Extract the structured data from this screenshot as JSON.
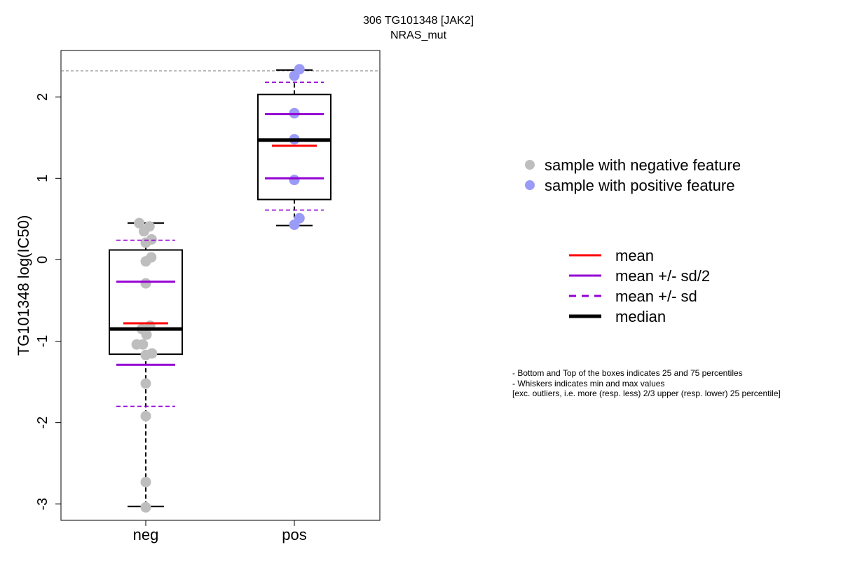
{
  "title": {
    "line1": "306 TG101348 [JAK2]",
    "line2": "NRAS_mut"
  },
  "legend_points": [
    {
      "label": "sample with negative feature",
      "color": "#bebebe"
    },
    {
      "label": "sample with positive feature",
      "color": "#9a9af7"
    }
  ],
  "legend_lines": [
    {
      "label": "mean",
      "color": "#ff0000",
      "style": "solid"
    },
    {
      "label": "mean +/- sd/2",
      "color": "#9400d3",
      "style": "solid"
    },
    {
      "label": "mean +/- sd",
      "color": "#9400d3",
      "style": "dashed"
    },
    {
      "label": "median",
      "color": "#000000",
      "style": "thick"
    }
  ],
  "notes": [
    "- Bottom and Top of the boxes indicates 25 and 75 percentiles",
    "- Whiskers indicates min and max values",
    "[exc. outliers, i.e. more (resp. less) 2/3 upper (resp. lower) 25 percentile]"
  ],
  "chart_data": {
    "type": "box",
    "title": "306 TG101348 [JAK2]\nNRAS_mut",
    "xlabel": "",
    "ylabel": "TG101348 log(IC50)",
    "categories": [
      "neg",
      "pos"
    ],
    "ylim": [
      -3.2,
      2.57
    ],
    "yticks": [
      -3,
      -2,
      -1,
      0,
      1,
      2
    ],
    "reference_line": 2.32,
    "groups": [
      {
        "name": "neg",
        "color": "#bebebe",
        "box": {
          "whisker_low": -3.03,
          "q1": -1.16,
          "median": -0.85,
          "q3": 0.12,
          "whisker_high": 0.45
        },
        "mean": -0.78,
        "mean_minus_half_sd": -1.29,
        "mean_plus_half_sd": -0.27,
        "mean_minus_sd": -1.8,
        "mean_plus_sd": 0.24,
        "points": [
          {
            "x": -0.18,
            "y": 0.45
          },
          {
            "x": -0.05,
            "y": 0.35
          },
          {
            "x": 0.1,
            "y": 0.41
          },
          {
            "x": 0.16,
            "y": 0.25
          },
          {
            "x": 0.0,
            "y": 0.21
          },
          {
            "x": 0.15,
            "y": 0.03
          },
          {
            "x": 0.0,
            "y": -0.02
          },
          {
            "x": 0.0,
            "y": -0.29
          },
          {
            "x": -0.11,
            "y": -0.85
          },
          {
            "x": 0.12,
            "y": -0.81
          },
          {
            "x": 0.02,
            "y": -0.92
          },
          {
            "x": -0.25,
            "y": -1.04
          },
          {
            "x": -0.08,
            "y": -1.04
          },
          {
            "x": 0.0,
            "y": -1.17
          },
          {
            "x": 0.17,
            "y": -1.15
          },
          {
            "x": 0.0,
            "y": -1.52
          },
          {
            "x": 0.0,
            "y": -1.92
          },
          {
            "x": 0.0,
            "y": -2.73
          },
          {
            "x": 0.0,
            "y": -3.04
          }
        ]
      },
      {
        "name": "pos",
        "color": "#9a9af7",
        "box": {
          "whisker_low": 0.42,
          "q1": 0.74,
          "median": 1.47,
          "q3": 2.03,
          "whisker_high": 2.33
        },
        "mean": 1.4,
        "mean_minus_half_sd": 1.0,
        "mean_plus_half_sd": 1.79,
        "mean_minus_sd": 0.61,
        "mean_plus_sd": 2.18,
        "points": [
          {
            "x": 0.14,
            "y": 2.34
          },
          {
            "x": 0.0,
            "y": 2.26
          },
          {
            "x": 0.0,
            "y": 1.8
          },
          {
            "x": 0.0,
            "y": 1.48
          },
          {
            "x": 0.0,
            "y": 0.98
          },
          {
            "x": 0.14,
            "y": 0.51
          },
          {
            "x": 0.0,
            "y": 0.43
          }
        ]
      }
    ]
  }
}
